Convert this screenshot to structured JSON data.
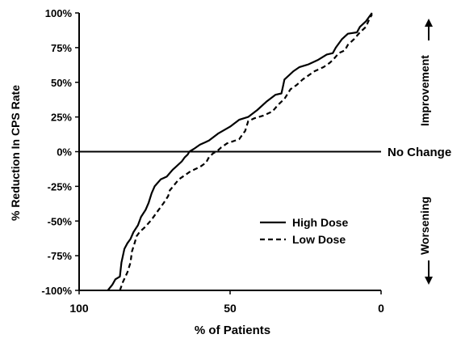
{
  "chart_data": {
    "type": "line",
    "title": "",
    "xlabel": "% of Patients",
    "ylabel": "% Reduction In CPS Rate",
    "xlim": [
      100,
      0
    ],
    "ylim": [
      -100,
      100
    ],
    "x_reversed": true,
    "grid": false,
    "x_ticks": [
      {
        "value": 100,
        "label": "100"
      },
      {
        "value": 50,
        "label": "50"
      },
      {
        "value": 0,
        "label": "0"
      }
    ],
    "y_ticks": [
      {
        "value": 100,
        "label": "100%"
      },
      {
        "value": 75,
        "label": "75%"
      },
      {
        "value": 50,
        "label": "50%"
      },
      {
        "value": 25,
        "label": "25%"
      },
      {
        "value": 0,
        "label": "0%"
      },
      {
        "value": -25,
        "label": "-25%"
      },
      {
        "value": -50,
        "label": "-50%"
      },
      {
        "value": -75,
        "label": "-75%"
      },
      {
        "value": -100,
        "label": "-100%"
      }
    ],
    "reference_line": {
      "y": 0,
      "label": "No Change"
    },
    "annotations": {
      "improvement": "Improvement",
      "worsening": "Worsening"
    },
    "legend_position": "lower-right",
    "series": [
      {
        "name": "High Dose",
        "style": "solid",
        "points": [
          [
            90.5,
            -100
          ],
          [
            89,
            -96
          ],
          [
            88,
            -92
          ],
          [
            86.5,
            -90
          ],
          [
            86,
            -80
          ],
          [
            85,
            -70
          ],
          [
            84,
            -66
          ],
          [
            83,
            -63
          ],
          [
            82,
            -58
          ],
          [
            80.5,
            -53
          ],
          [
            79.5,
            -47
          ],
          [
            78,
            -42
          ],
          [
            77,
            -37
          ],
          [
            76,
            -30
          ],
          [
            75,
            -25
          ],
          [
            73,
            -20
          ],
          [
            71,
            -18
          ],
          [
            69,
            -13
          ],
          [
            68,
            -11
          ],
          [
            66,
            -7
          ],
          [
            65,
            -4
          ],
          [
            64,
            -2
          ],
          [
            63.5,
            0
          ],
          [
            62,
            2
          ],
          [
            60,
            5
          ],
          [
            57,
            8
          ],
          [
            54,
            13
          ],
          [
            50,
            18
          ],
          [
            47,
            23
          ],
          [
            44,
            25
          ],
          [
            41,
            30
          ],
          [
            38,
            36
          ],
          [
            35,
            41
          ],
          [
            33,
            42
          ],
          [
            32.5,
            47
          ],
          [
            32,
            52
          ],
          [
            29,
            58
          ],
          [
            27,
            61
          ],
          [
            24,
            63
          ],
          [
            21,
            66
          ],
          [
            18,
            70
          ],
          [
            16,
            71
          ],
          [
            15,
            75
          ],
          [
            13,
            81
          ],
          [
            11,
            85
          ],
          [
            8,
            86
          ],
          [
            7,
            90
          ],
          [
            5,
            94
          ],
          [
            4,
            97
          ],
          [
            3,
            100
          ]
        ]
      },
      {
        "name": "Low Dose",
        "style": "dashed",
        "points": [
          [
            86.5,
            -100
          ],
          [
            85.5,
            -94
          ],
          [
            84,
            -87
          ],
          [
            83,
            -80
          ],
          [
            82.5,
            -72
          ],
          [
            81.5,
            -65
          ],
          [
            81,
            -61
          ],
          [
            80,
            -58
          ],
          [
            78,
            -54
          ],
          [
            76,
            -49
          ],
          [
            74,
            -43
          ],
          [
            72,
            -37
          ],
          [
            70.5,
            -32
          ],
          [
            70,
            -28
          ],
          [
            68.5,
            -24
          ],
          [
            67,
            -20
          ],
          [
            65,
            -17
          ],
          [
            63,
            -14
          ],
          [
            60,
            -11
          ],
          [
            58,
            -8
          ],
          [
            57,
            -4
          ],
          [
            55.5,
            -1
          ],
          [
            54.5,
            0
          ],
          [
            53,
            3
          ],
          [
            51,
            6
          ],
          [
            47,
            9
          ],
          [
            45,
            15
          ],
          [
            44,
            22
          ],
          [
            42,
            24
          ],
          [
            39,
            26
          ],
          [
            36,
            29
          ],
          [
            34,
            34
          ],
          [
            32,
            38
          ],
          [
            30,
            45
          ],
          [
            28,
            48
          ],
          [
            26,
            52
          ],
          [
            24,
            55
          ],
          [
            22,
            58
          ],
          [
            19,
            61
          ],
          [
            17,
            64
          ],
          [
            16,
            66
          ],
          [
            14,
            71
          ],
          [
            12,
            73
          ],
          [
            11,
            77
          ],
          [
            9,
            81
          ],
          [
            7,
            86
          ],
          [
            5,
            90
          ],
          [
            4,
            95
          ],
          [
            3,
            99
          ]
        ]
      }
    ]
  }
}
